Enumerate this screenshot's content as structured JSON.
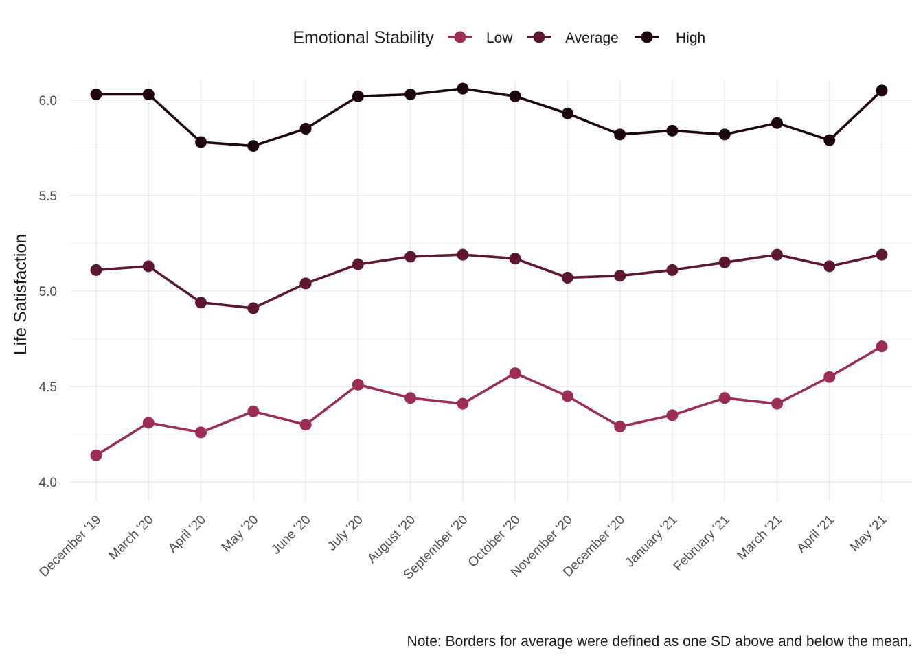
{
  "chart_data": {
    "type": "line",
    "title": "",
    "xlabel": "",
    "ylabel": "Life Satisfaction",
    "legend_title": "Emotional Stability",
    "legend_position": "top",
    "caption": "Note: Borders for average were defined as one SD above and below the mean.",
    "categories": [
      "December '19",
      "March '20",
      "April '20",
      "May '20",
      "June '20",
      "July '20",
      "August '20",
      "September '20",
      "October '20",
      "November '20",
      "December '20",
      "January '21",
      "February '21",
      "March '21",
      "April '21",
      "May '21"
    ],
    "ylim": [
      3.9,
      6.1
    ],
    "yticks": [
      "4.0",
      "4.5",
      "5.0",
      "5.5",
      "6.0"
    ],
    "grid": true,
    "series": [
      {
        "name": "Low",
        "color": "#9b2d57",
        "values": [
          4.14,
          4.31,
          4.26,
          4.37,
          4.3,
          4.51,
          4.44,
          4.41,
          4.57,
          4.45,
          4.29,
          4.35,
          4.44,
          4.41,
          4.55,
          4.71
        ]
      },
      {
        "name": "Average",
        "color": "#5e1732",
        "values": [
          5.11,
          5.13,
          4.94,
          4.91,
          5.04,
          5.14,
          5.18,
          5.19,
          5.17,
          5.07,
          5.08,
          5.11,
          5.15,
          5.19,
          5.13,
          5.19
        ]
      },
      {
        "name": "High",
        "color": "#1e0510",
        "values": [
          6.03,
          6.03,
          5.78,
          5.76,
          5.85,
          6.02,
          6.03,
          6.06,
          6.02,
          5.93,
          5.82,
          5.84,
          5.82,
          5.88,
          5.79,
          6.05
        ]
      }
    ]
  }
}
